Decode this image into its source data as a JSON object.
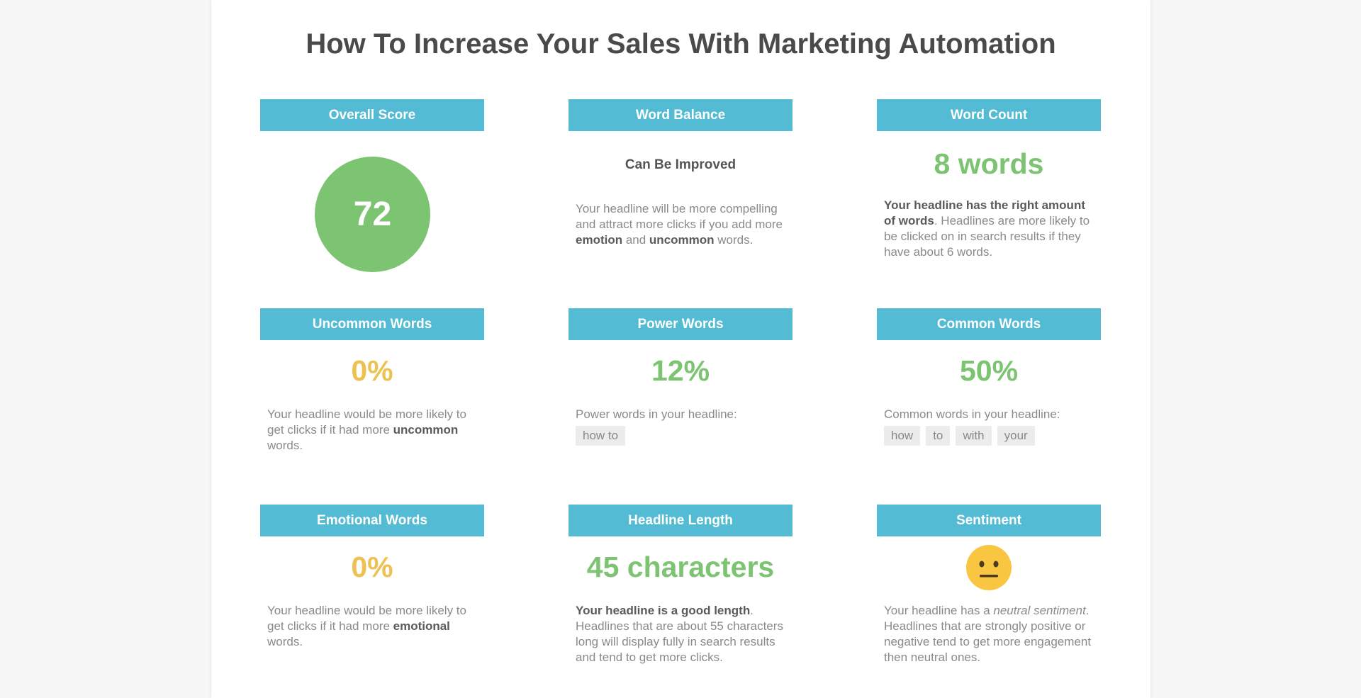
{
  "title": "How To Increase Your Sales With Marketing Automation",
  "overall_score": {
    "header": "Overall Score",
    "value": "72"
  },
  "word_balance": {
    "header": "Word Balance",
    "verdict": "Can Be Improved",
    "text_1": "Your headline will be more compelling and attract more clicks if you add more ",
    "bold_1": "emotion",
    "text_2": " and ",
    "bold_2": "uncommon",
    "text_3": " words."
  },
  "word_count": {
    "header": "Word Count",
    "value": "8 words",
    "bold": "Your headline has the right amount of words",
    "text": ". Headlines are more likely to be clicked on in search results if they have about 6 words."
  },
  "uncommon_words": {
    "header": "Uncommon Words",
    "value": "0%",
    "text_1": "Your headline would be more likely to get clicks if it had more ",
    "bold": "uncommon",
    "text_2": " words."
  },
  "power_words": {
    "header": "Power Words",
    "value": "12%",
    "label": "Power words in your headline:",
    "tags": [
      "how to"
    ]
  },
  "common_words": {
    "header": "Common Words",
    "value": "50%",
    "label": "Common words in your headline:",
    "tags": [
      "how",
      "to",
      "with",
      "your"
    ]
  },
  "emotional_words": {
    "header": "Emotional Words",
    "value": "0%",
    "text_1": "Your headline would be more likely to get clicks if it had more ",
    "bold": "emotional",
    "text_2": " words."
  },
  "headline_length": {
    "header": "Headline Length",
    "value": "45 characters",
    "bold": "Your headline is a good length",
    "text": ". Headlines that are about 55 characters long will display fully in search results and tend to get more clicks."
  },
  "sentiment": {
    "header": "Sentiment",
    "icon": "neutral-face-icon",
    "text_1": "Your headline has a ",
    "italic": "neutral sentiment",
    "text_2": ". Headlines that are strongly positive or negative tend to get more engagement then neutral ones."
  },
  "colors": {
    "header_bg": "#54bbd5",
    "good": "#7dc472",
    "warn": "#edc252",
    "emoji": "#f9c642"
  }
}
